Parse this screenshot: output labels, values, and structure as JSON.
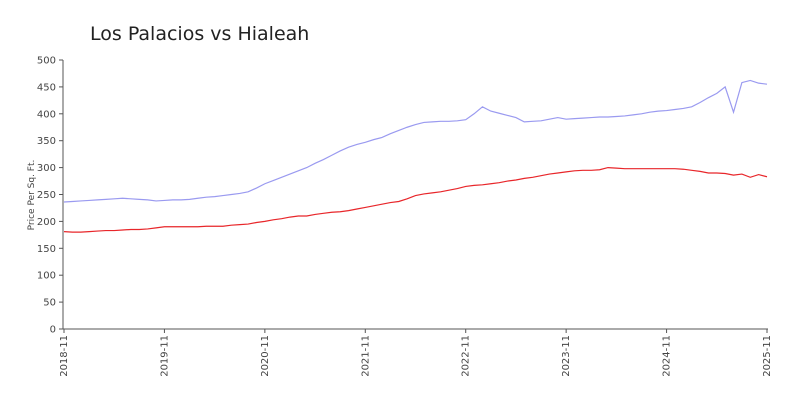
{
  "chart_data": {
    "type": "line",
    "title": "Los Palacios vs Hialeah",
    "y_label": "Price Per Sq. Ft.",
    "x": [
      "2018-11",
      "2018-12",
      "2019-01",
      "2019-02",
      "2019-03",
      "2019-04",
      "2019-05",
      "2019-06",
      "2019-07",
      "2019-08",
      "2019-09",
      "2019-10",
      "2019-11",
      "2019-12",
      "2020-01",
      "2020-02",
      "2020-03",
      "2020-04",
      "2020-05",
      "2020-06",
      "2020-07",
      "2020-08",
      "2020-09",
      "2020-10",
      "2020-11",
      "2020-12",
      "2021-01",
      "2021-02",
      "2021-03",
      "2021-04",
      "2021-05",
      "2021-06",
      "2021-07",
      "2021-08",
      "2021-09",
      "2021-10",
      "2021-11",
      "2021-12",
      "2022-01",
      "2022-02",
      "2022-03",
      "2022-04",
      "2022-05",
      "2022-06",
      "2022-07",
      "2022-08",
      "2022-09",
      "2022-10",
      "2022-11",
      "2022-12",
      "2023-01",
      "2023-02",
      "2023-03",
      "2023-04",
      "2023-05",
      "2023-06",
      "2023-07",
      "2023-08",
      "2023-09",
      "2023-10",
      "2023-11",
      "2023-12",
      "2024-01",
      "2024-02",
      "2024-03",
      "2024-04",
      "2024-05",
      "2024-06",
      "2024-07",
      "2024-08",
      "2024-09",
      "2024-10",
      "2024-11",
      "2024-12",
      "2025-01",
      "2025-02",
      "2025-03",
      "2025-04",
      "2025-05",
      "2025-06",
      "2025-07",
      "2025-08",
      "2025-09",
      "2025-10",
      "2025-11"
    ],
    "series": [
      {
        "color": "#9a9af0",
        "values": [
          236,
          237,
          238,
          239,
          240,
          241,
          242,
          243,
          242,
          241,
          240,
          238,
          239,
          240,
          240,
          241,
          243,
          245,
          246,
          248,
          250,
          252,
          255,
          262,
          270,
          276,
          282,
          288,
          294,
          300,
          308,
          315,
          323,
          331,
          338,
          343,
          347,
          352,
          356,
          363,
          369,
          375,
          380,
          384,
          385,
          386,
          386,
          387,
          389,
          400,
          413,
          405,
          401,
          397,
          393,
          385,
          386,
          387,
          390,
          393,
          390,
          391,
          392,
          393,
          394,
          394,
          395,
          396,
          398,
          400,
          403,
          405,
          406,
          408,
          410,
          413,
          421,
          430,
          438,
          450,
          403,
          458,
          462,
          457,
          455
        ]
      },
      {
        "color": "#e8262a",
        "values": [
          181,
          180,
          180,
          181,
          182,
          183,
          183,
          184,
          185,
          185,
          186,
          188,
          190,
          190,
          190,
          190,
          190,
          191,
          191,
          191,
          193,
          194,
          195,
          198,
          200,
          203,
          205,
          208,
          210,
          210,
          213,
          215,
          217,
          218,
          220,
          223,
          226,
          229,
          232,
          235,
          237,
          242,
          248,
          251,
          253,
          255,
          258,
          261,
          265,
          267,
          268,
          270,
          272,
          275,
          277,
          280,
          282,
          285,
          288,
          290,
          292,
          294,
          295,
          295,
          296,
          300,
          299,
          298,
          298,
          298,
          298,
          298,
          298,
          298,
          297,
          295,
          293,
          290,
          290,
          289,
          286,
          288,
          282,
          287,
          283
        ]
      }
    ],
    "ylim": [
      0,
      500
    ],
    "yticks": [
      0,
      50,
      100,
      150,
      200,
      250,
      300,
      350,
      400,
      450,
      500
    ],
    "xticks": [
      "2018-11",
      "2019-11",
      "2020-11",
      "2021-11",
      "2022-11",
      "2023-11",
      "2024-11",
      "2025-11"
    ]
  }
}
